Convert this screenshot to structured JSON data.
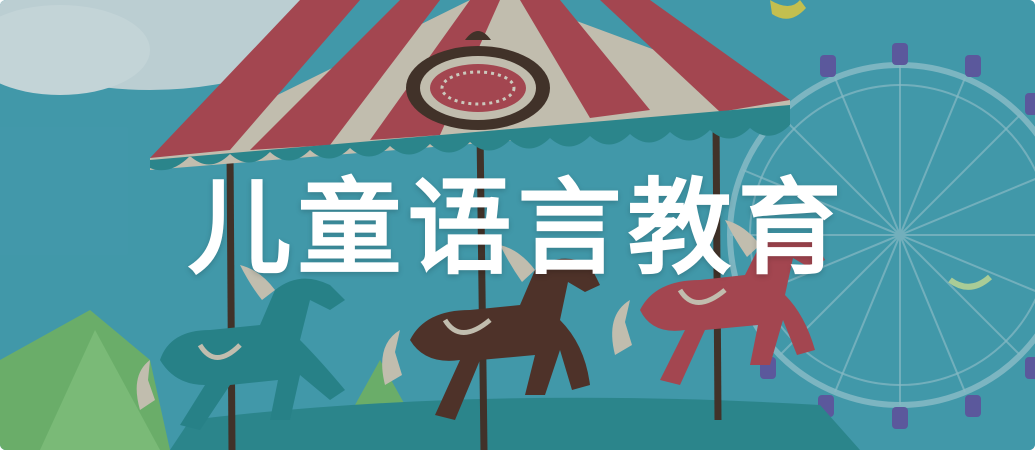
{
  "banner": {
    "title": "儿童语言教育"
  },
  "colors": {
    "sky": "#4aa6b8",
    "canopy_red": "#c1424b",
    "canopy_cream": "#e6d3bd",
    "canopy_teal": "#2f8f93",
    "horse_teal": "#2a8a8e",
    "horse_brown": "#5a2a1c",
    "horse_red": "#c1424b",
    "ferris_purple": "#6a58a8",
    "hill_green": "#7cc06a",
    "title_text": "#ffffff"
  }
}
